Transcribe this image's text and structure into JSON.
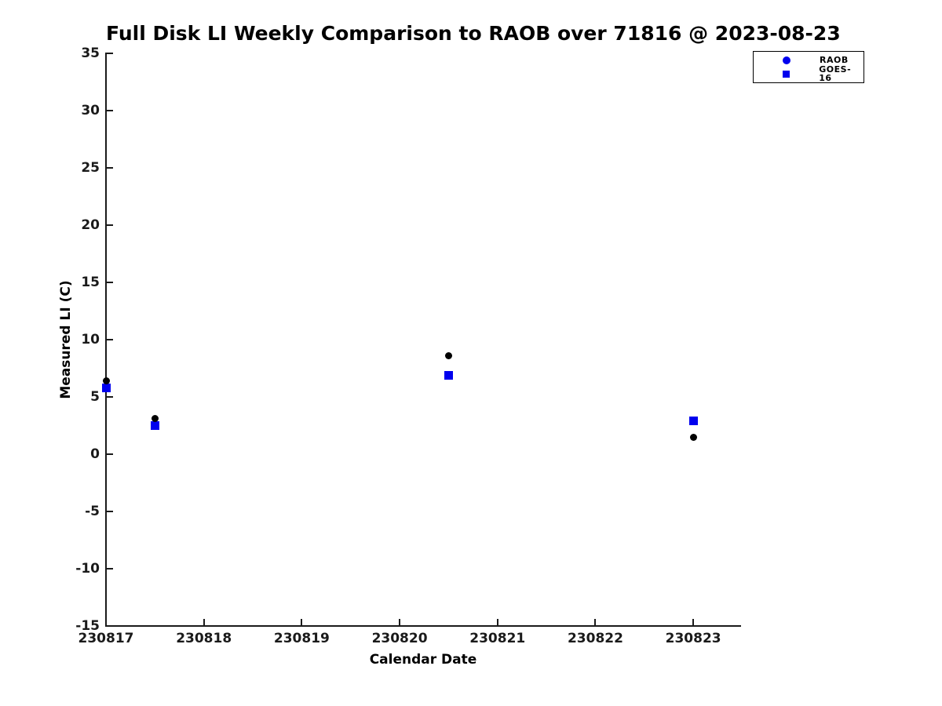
{
  "chart_data": {
    "type": "scatter",
    "title": "Full Disk LI Weekly Comparison to RAOB over 71816 @ 2023-08-23",
    "xlabel": "Calendar Date",
    "ylabel": "Measured LI (C)",
    "xlim": [
      230817,
      230823.48
    ],
    "ylim": [
      -15,
      35
    ],
    "xticks": [
      230817,
      230818,
      230819,
      230820,
      230821,
      230822,
      230823
    ],
    "yticks": [
      35,
      30,
      25,
      20,
      15,
      10,
      5,
      0,
      -5,
      -10,
      -15
    ],
    "grid": false,
    "legend_position": "top-right, outside plot frame",
    "axis_color": "#1a1a1a",
    "series": [
      {
        "name": "RAOB",
        "marker": "circle",
        "plot_color": "#000000",
        "legend_color": "#0000ee",
        "points": [
          [
            230817.0,
            6.4
          ],
          [
            230817.5,
            3.1
          ],
          [
            230820.5,
            8.6
          ],
          [
            230823.0,
            1.5
          ]
        ]
      },
      {
        "name": "GOES-16",
        "marker": "square",
        "plot_color": "#0000ee",
        "legend_color": "#0000ee",
        "points": [
          [
            230817.0,
            5.8
          ],
          [
            230817.5,
            2.5
          ],
          [
            230820.5,
            6.9
          ],
          [
            230823.0,
            2.9
          ]
        ]
      }
    ]
  }
}
